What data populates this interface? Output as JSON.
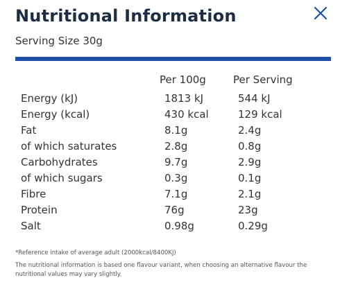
{
  "header": {
    "title": "Nutritional Information",
    "close_icon": "close-icon"
  },
  "serving_size": "Serving Size 30g",
  "table": {
    "columns": [
      "Per 100g",
      "Per Serving"
    ],
    "rows": [
      {
        "name": "Energy (kJ)",
        "per100": "1813 kJ",
        "serving": "544 kJ"
      },
      {
        "name": "Energy (kcal)",
        "per100": "430 kcal",
        "serving": "129 kcal"
      },
      {
        "name": "Fat",
        "per100": "8.1g",
        "serving": "2.4g"
      },
      {
        "name": "of which saturates",
        "per100": "2.8g",
        "serving": "0.8g"
      },
      {
        "name": "Carbohydrates",
        "per100": "9.7g",
        "serving": "2.9g"
      },
      {
        "name": "of which sugars",
        "per100": "0.3g",
        "serving": "0.1g"
      },
      {
        "name": "Fibre",
        "per100": "7.1g",
        "serving": "2.1g"
      },
      {
        "name": "Protein",
        "per100": "76g",
        "serving": "23g"
      },
      {
        "name": "Salt",
        "per100": "0.98g",
        "serving": "0.29g"
      }
    ]
  },
  "footnotes": {
    "reference": "*Reference intake of average adult (2000kcal/8400KJ)",
    "disclaimer": "The nutritional information is based one flavour variant, when choosing an alternative flavour the nutritional values may vary slightly."
  },
  "colors": {
    "title": "#1d2d44",
    "accent": "#1f4fa8",
    "close_icon": "#1f4fa8"
  }
}
